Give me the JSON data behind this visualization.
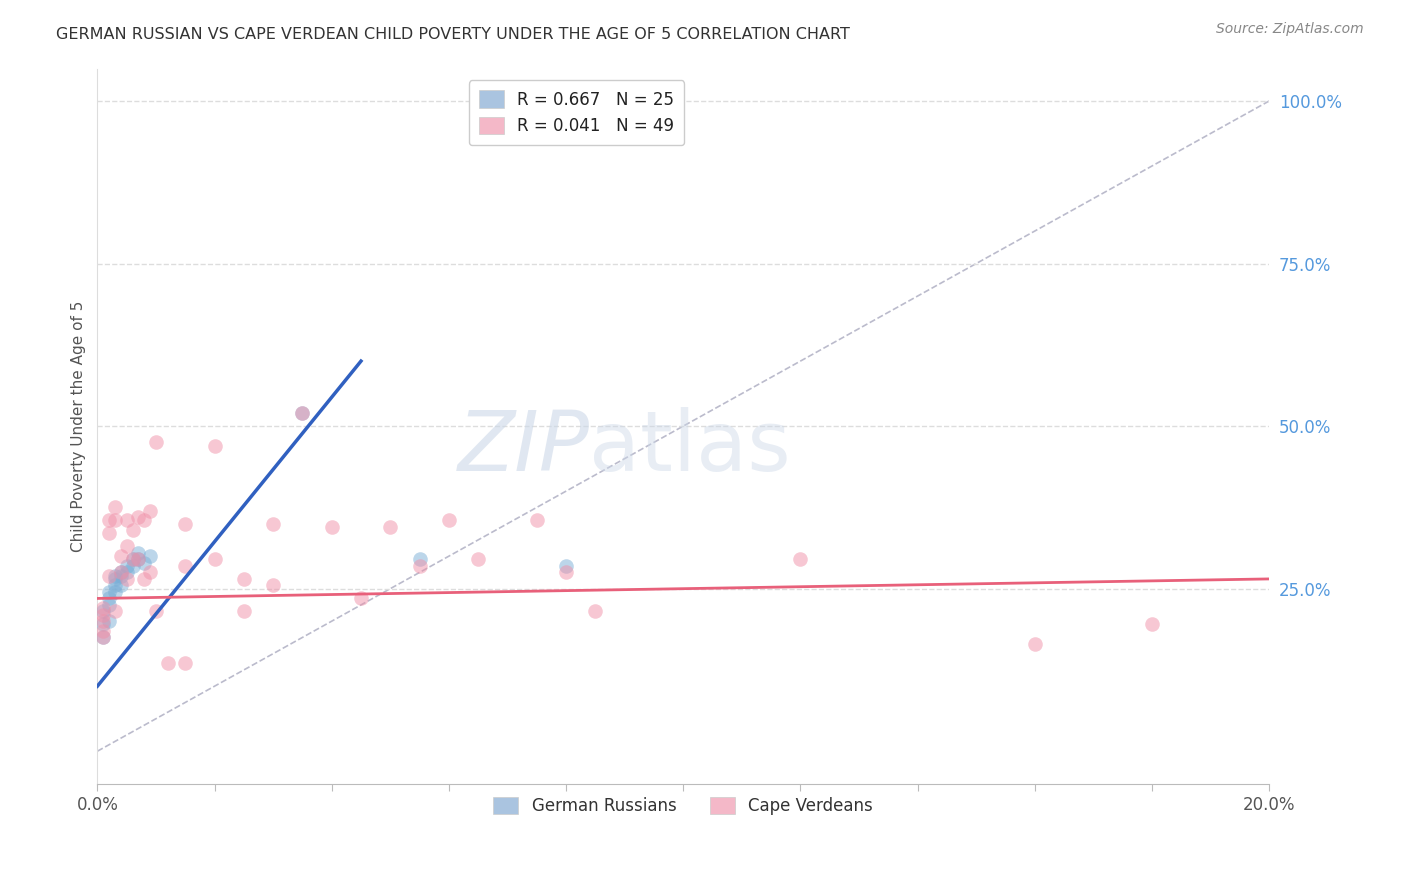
{
  "title": "GERMAN RUSSIAN VS CAPE VERDEAN CHILD POVERTY UNDER THE AGE OF 5 CORRELATION CHART",
  "source": "Source: ZipAtlas.com",
  "ylabel": "Child Poverty Under the Age of 5",
  "y_tick_labels_right": [
    "100.0%",
    "75.0%",
    "50.0%",
    "25.0%"
  ],
  "y_tick_positions_right": [
    1.0,
    0.75,
    0.5,
    0.25
  ],
  "legend_entries": [
    {
      "label": "R = 0.667   N = 25",
      "color": "#aac4e0"
    },
    {
      "label": "R = 0.041   N = 49",
      "color": "#f4b8c8"
    }
  ],
  "legend_bottom": [
    "German Russians",
    "Cape Verdeans"
  ],
  "german_russian_x": [
    0.001,
    0.001,
    0.001,
    0.002,
    0.002,
    0.002,
    0.002,
    0.003,
    0.003,
    0.003,
    0.003,
    0.004,
    0.004,
    0.004,
    0.005,
    0.005,
    0.006,
    0.006,
    0.007,
    0.007,
    0.008,
    0.009,
    0.035,
    0.055,
    0.08
  ],
  "german_russian_y": [
    0.215,
    0.195,
    0.175,
    0.245,
    0.235,
    0.225,
    0.2,
    0.27,
    0.265,
    0.255,
    0.245,
    0.275,
    0.27,
    0.255,
    0.285,
    0.275,
    0.295,
    0.285,
    0.305,
    0.295,
    0.29,
    0.3,
    0.52,
    0.295,
    0.285
  ],
  "cape_verdean_x": [
    0.001,
    0.001,
    0.001,
    0.001,
    0.001,
    0.002,
    0.002,
    0.002,
    0.003,
    0.003,
    0.003,
    0.004,
    0.004,
    0.005,
    0.005,
    0.005,
    0.006,
    0.006,
    0.007,
    0.007,
    0.008,
    0.008,
    0.009,
    0.009,
    0.01,
    0.01,
    0.012,
    0.015,
    0.015,
    0.015,
    0.02,
    0.02,
    0.025,
    0.025,
    0.03,
    0.03,
    0.035,
    0.04,
    0.045,
    0.05,
    0.055,
    0.06,
    0.065,
    0.075,
    0.08,
    0.085,
    0.12,
    0.16,
    0.18
  ],
  "cape_verdean_y": [
    0.22,
    0.21,
    0.2,
    0.185,
    0.175,
    0.355,
    0.335,
    0.27,
    0.375,
    0.355,
    0.215,
    0.3,
    0.275,
    0.355,
    0.315,
    0.265,
    0.34,
    0.295,
    0.36,
    0.295,
    0.355,
    0.265,
    0.37,
    0.275,
    0.475,
    0.215,
    0.135,
    0.35,
    0.285,
    0.135,
    0.47,
    0.295,
    0.265,
    0.215,
    0.35,
    0.255,
    0.52,
    0.345,
    0.235,
    0.345,
    0.285,
    0.355,
    0.295,
    0.355,
    0.275,
    0.215,
    0.295,
    0.165,
    0.195
  ],
  "blue_line_x": [
    0.0,
    0.045
  ],
  "blue_line_y": [
    0.1,
    0.6
  ],
  "pink_line_x": [
    0.0,
    0.2
  ],
  "pink_line_y": [
    0.235,
    0.265
  ],
  "ref_line_x": [
    0.0,
    0.2
  ],
  "ref_line_y": [
    0.0,
    1.0
  ],
  "xlim": [
    0.0,
    0.2
  ],
  "ylim": [
    -0.05,
    1.05
  ],
  "bg_color": "#ffffff",
  "dot_size": 110,
  "dot_alpha": 0.5,
  "blue_dot_color": "#7aaed6",
  "pink_dot_color": "#f090a8",
  "blue_line_color": "#3060c0",
  "pink_line_color": "#e8607a",
  "ref_line_color": "#bbbbcc",
  "grid_color": "#dddddd",
  "title_color": "#333333",
  "right_label_color": "#5599dd",
  "watermark_color": "#ccd8e8"
}
